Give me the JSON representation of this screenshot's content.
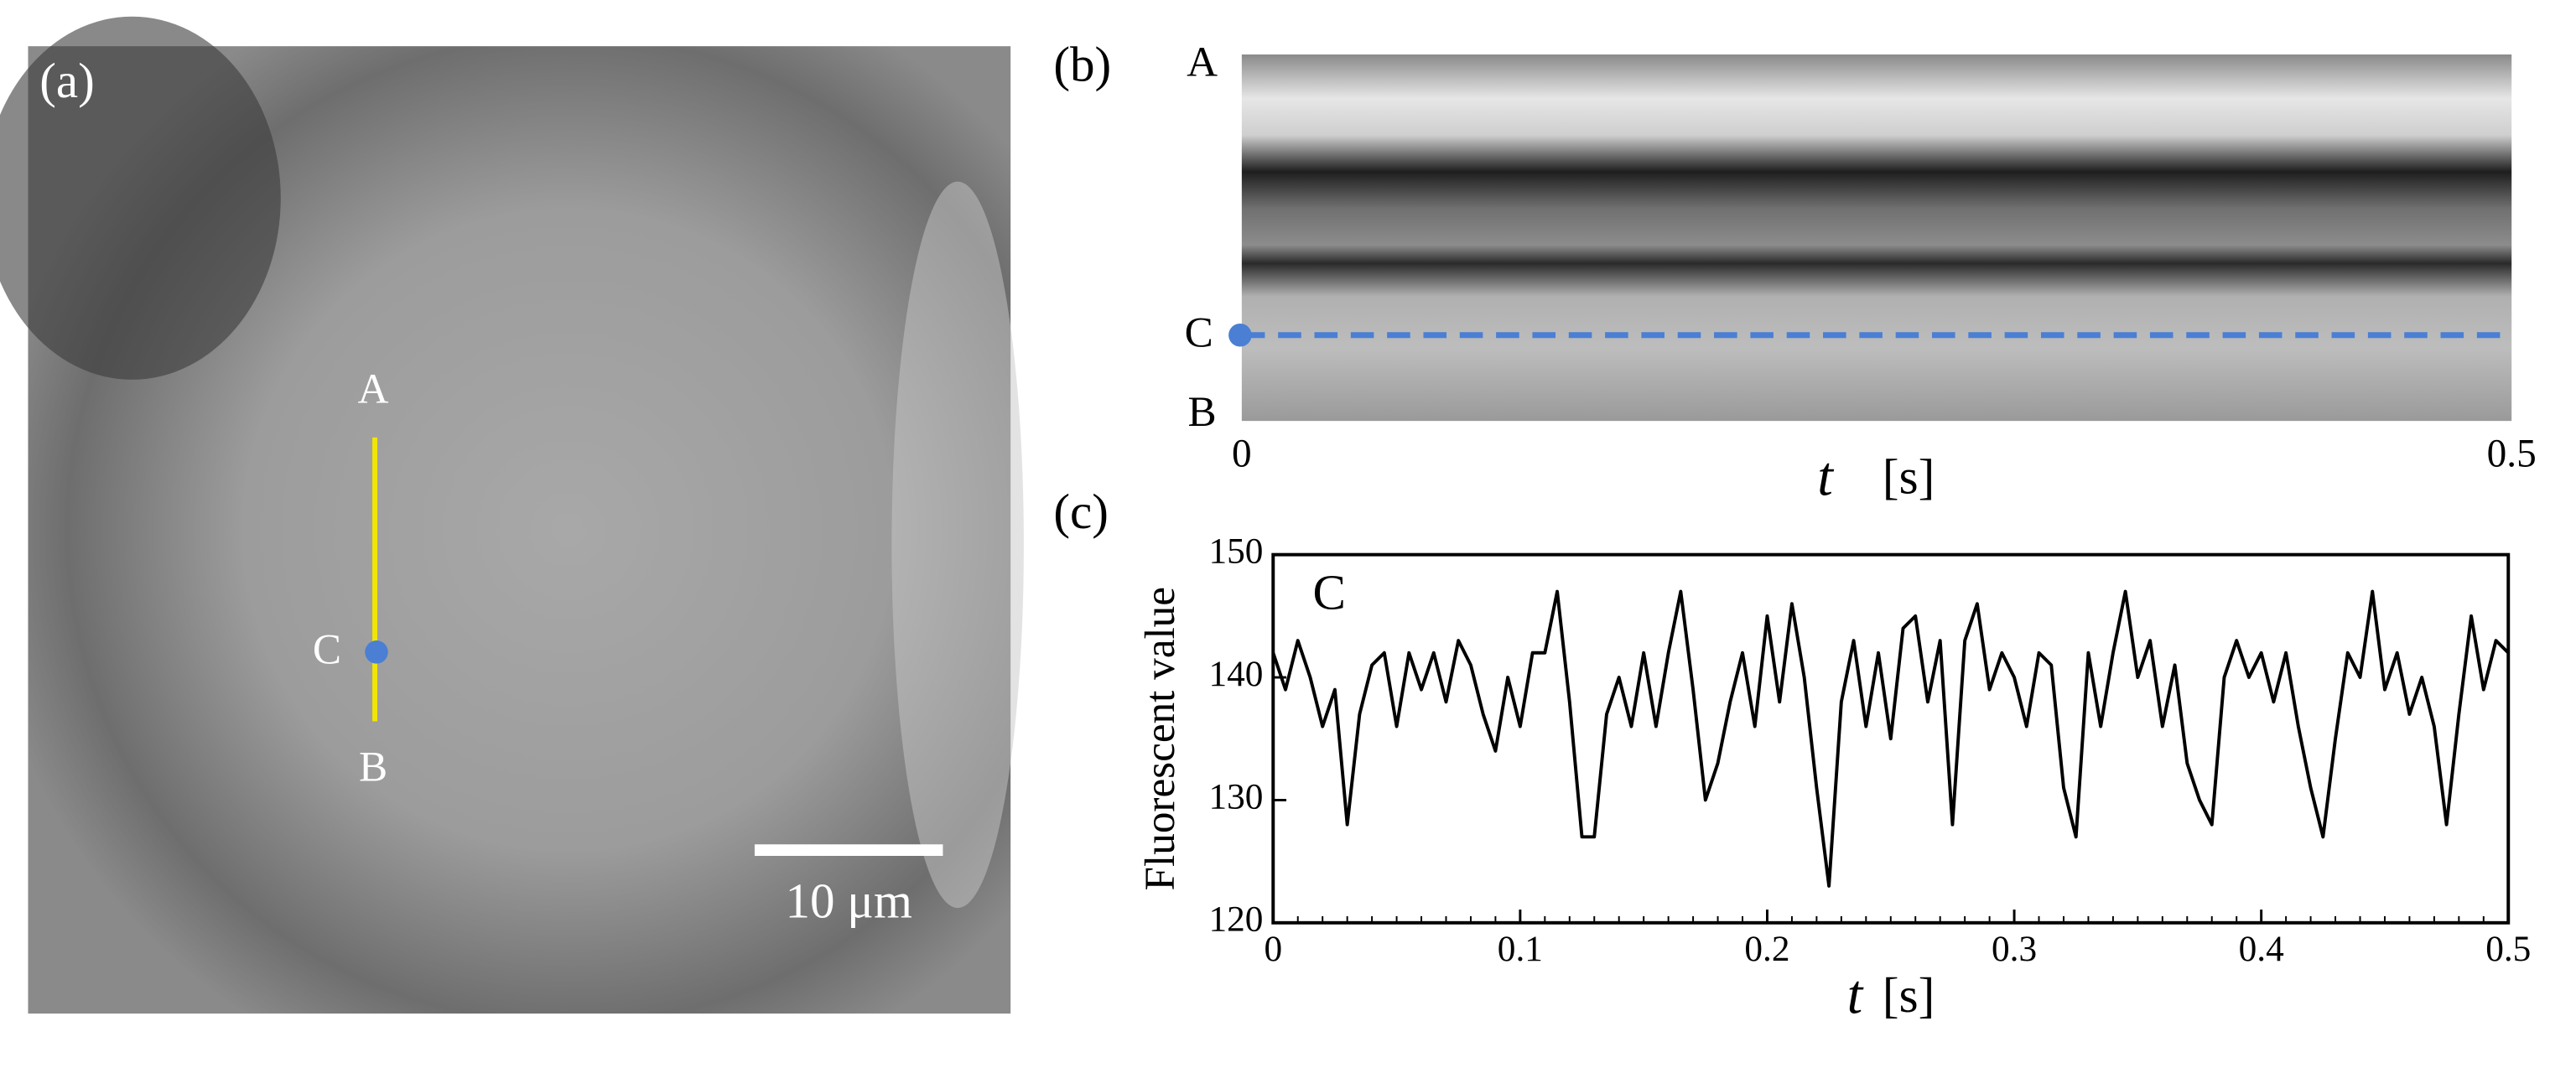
{
  "panel_a": {
    "label": "(a)",
    "markers": [
      "A",
      "C",
      "B"
    ],
    "scale_bar": "10 μm"
  },
  "panel_b": {
    "label": "(b)",
    "markers": [
      "A",
      "C",
      "B"
    ],
    "xticks": [
      0,
      0.5
    ],
    "xlabel_symbol": "t",
    "xlabel_unit": "[s]"
  },
  "chart_data": {
    "type": "line",
    "label": "(c)",
    "annotation": "C",
    "ylabel": "Fluorescent value",
    "xlabel_symbol": "t",
    "xlabel_unit": "[s]",
    "x": [
      0,
      0.005,
      0.01,
      0.015,
      0.02,
      0.025,
      0.03,
      0.035,
      0.04,
      0.045,
      0.05,
      0.055,
      0.06,
      0.065,
      0.07,
      0.075,
      0.08,
      0.085,
      0.09,
      0.095,
      0.1,
      0.105,
      0.11,
      0.115,
      0.12,
      0.125,
      0.13,
      0.135,
      0.14,
      0.145,
      0.15,
      0.155,
      0.16,
      0.165,
      0.17,
      0.175,
      0.18,
      0.185,
      0.19,
      0.195,
      0.2,
      0.205,
      0.21,
      0.215,
      0.22,
      0.225,
      0.23,
      0.235,
      0.24,
      0.245,
      0.25,
      0.255,
      0.26,
      0.265,
      0.27,
      0.275,
      0.28,
      0.285,
      0.29,
      0.295,
      0.3,
      0.305,
      0.31,
      0.315,
      0.32,
      0.325,
      0.33,
      0.335,
      0.34,
      0.345,
      0.35,
      0.355,
      0.36,
      0.365,
      0.37,
      0.375,
      0.38,
      0.385,
      0.39,
      0.395,
      0.4,
      0.405,
      0.41,
      0.415,
      0.42,
      0.425,
      0.43,
      0.435,
      0.44,
      0.445,
      0.45,
      0.455,
      0.46,
      0.465,
      0.47,
      0.475,
      0.48,
      0.485,
      0.49,
      0.495,
      0.5
    ],
    "series": [
      {
        "color": "#000000",
        "values": [
          142,
          139,
          143,
          140,
          136,
          139,
          128,
          137,
          141,
          142,
          136,
          142,
          139,
          142,
          138,
          143,
          141,
          137,
          134,
          140,
          136,
          142,
          142,
          147,
          138,
          127,
          127,
          137,
          140,
          136,
          142,
          136,
          142,
          147,
          139,
          130,
          133,
          138,
          142,
          136,
          145,
          138,
          146,
          140,
          131,
          123,
          138,
          143,
          136,
          142,
          135,
          144,
          145,
          138,
          143,
          128,
          143,
          146,
          139,
          142,
          140,
          136,
          142,
          141,
          131,
          127,
          142,
          136,
          142,
          147,
          140,
          143,
          136,
          141,
          133,
          130,
          128,
          140,
          143,
          140,
          142,
          138,
          142,
          136,
          131,
          127,
          135,
          142,
          140,
          147,
          139,
          142,
          137,
          140,
          136,
          128,
          137,
          145,
          139,
          143,
          142
        ]
      }
    ],
    "xlim": [
      0,
      0.5
    ],
    "ylim": [
      120,
      150
    ],
    "xticks": [
      0,
      0.1,
      0.2,
      0.3,
      0.4,
      0.5
    ],
    "yticks": [
      120,
      130,
      140,
      150
    ]
  }
}
